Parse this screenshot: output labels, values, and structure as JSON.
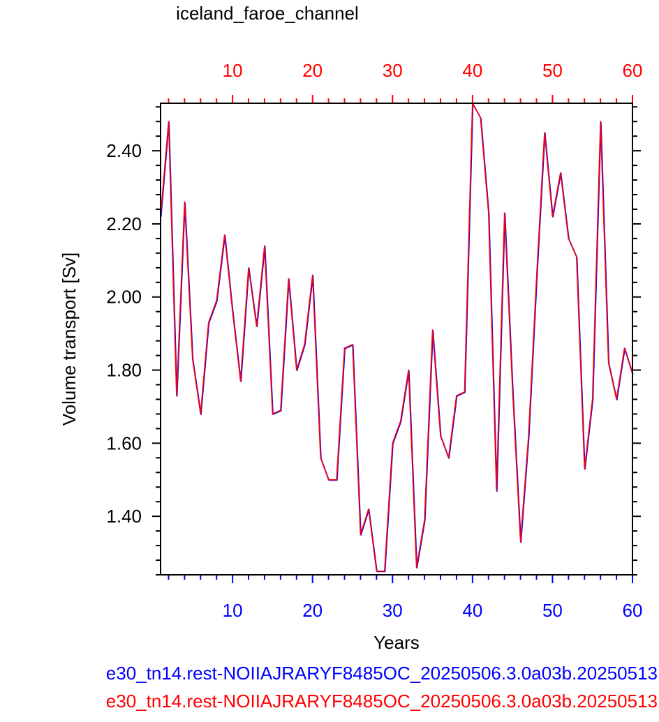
{
  "chart_data": {
    "type": "line",
    "title": "iceland_faroe_channel",
    "xlabel": "Years",
    "ylabel": "Volume transport [Sv]",
    "xlim": [
      1,
      60
    ],
    "ylim": [
      1.24,
      2.53
    ],
    "x_ticks": [
      10,
      20,
      30,
      40,
      50,
      60
    ],
    "y_ticks": [
      1.4,
      1.6,
      1.8,
      2.0,
      2.2,
      2.4
    ],
    "x_tick_labels": [
      "10",
      "20",
      "30",
      "40",
      "50",
      "60"
    ],
    "y_tick_labels": [
      "1.40",
      "1.60",
      "1.80",
      "2.00",
      "2.20",
      "2.40"
    ],
    "top_axis_color": "#ff0000",
    "bottom_axis_color": "#0000ff",
    "grid": false,
    "legend_position": "bottom",
    "x": [
      1,
      2,
      3,
      4,
      5,
      6,
      7,
      8,
      9,
      10,
      11,
      12,
      13,
      14,
      15,
      16,
      17,
      18,
      19,
      20,
      21,
      22,
      23,
      24,
      25,
      26,
      27,
      28,
      29,
      30,
      31,
      32,
      33,
      34,
      35,
      36,
      37,
      38,
      39,
      40,
      41,
      42,
      43,
      44,
      45,
      46,
      47,
      48,
      49,
      50,
      51,
      52,
      53,
      54,
      55,
      56,
      57,
      58,
      59,
      60
    ],
    "series": [
      {
        "name": "e30_tn14.rest-NOIIAJRARYF8485OC_20250506.3.0a03b.20250513",
        "color": "#0000ff",
        "values": [
          2.22,
          2.48,
          1.73,
          2.26,
          1.83,
          1.68,
          1.93,
          1.99,
          2.17,
          1.96,
          1.77,
          2.08,
          1.92,
          2.14,
          1.68,
          1.69,
          2.05,
          1.8,
          1.87,
          2.06,
          1.56,
          1.5,
          1.5,
          1.86,
          1.87,
          1.35,
          1.42,
          1.25,
          1.25,
          1.6,
          1.66,
          1.8,
          1.26,
          1.39,
          1.91,
          1.62,
          1.56,
          1.73,
          1.74,
          2.53,
          2.49,
          2.23,
          1.47,
          2.23,
          1.75,
          1.33,
          1.62,
          2.05,
          2.45,
          2.22,
          2.34,
          2.16,
          2.11,
          1.53,
          1.72,
          2.48,
          1.82,
          1.72,
          1.86,
          1.79
        ]
      },
      {
        "name": "e30_tn14.rest-NOIIAJRARYF8485OC_20250506.3.0a03b.20250513",
        "color": "#ff0000",
        "values": [
          2.22,
          2.48,
          1.73,
          2.26,
          1.83,
          1.68,
          1.93,
          1.99,
          2.17,
          1.96,
          1.77,
          2.08,
          1.92,
          2.14,
          1.68,
          1.69,
          2.05,
          1.8,
          1.87,
          2.06,
          1.56,
          1.5,
          1.5,
          1.86,
          1.87,
          1.35,
          1.42,
          1.25,
          1.25,
          1.6,
          1.66,
          1.8,
          1.26,
          1.39,
          1.91,
          1.62,
          1.56,
          1.73,
          1.74,
          2.53,
          2.49,
          2.23,
          1.47,
          2.23,
          1.75,
          1.33,
          1.62,
          2.05,
          2.45,
          2.22,
          2.34,
          2.16,
          2.11,
          1.53,
          1.72,
          2.48,
          1.82,
          1.72,
          1.86,
          1.79
        ]
      }
    ]
  }
}
